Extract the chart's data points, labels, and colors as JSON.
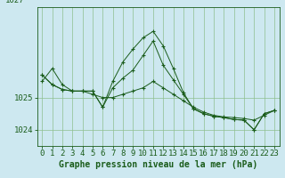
{
  "title": "Graphe pression niveau de la mer (hPa)",
  "background_color": "#cde8f0",
  "line_color": "#1a5c1a",
  "grid_color": "#8fbf8f",
  "hours": [
    0,
    1,
    2,
    3,
    4,
    5,
    6,
    7,
    8,
    9,
    10,
    11,
    12,
    13,
    14,
    15,
    16,
    17,
    18,
    19,
    20,
    21,
    22,
    23
  ],
  "series": [
    [
      1025.5,
      1025.9,
      1025.4,
      1025.2,
      1025.2,
      1025.1,
      1025.0,
      1025.0,
      1025.1,
      1025.2,
      1025.3,
      1025.5,
      1025.3,
      1025.1,
      1024.9,
      1024.7,
      1024.55,
      1024.45,
      1024.4,
      1024.38,
      1024.35,
      1024.3,
      1024.45,
      1024.6
    ],
    [
      1025.7,
      1025.4,
      1025.25,
      1025.2,
      1025.2,
      1025.2,
      1024.7,
      1025.3,
      1025.6,
      1025.85,
      1026.3,
      1026.75,
      1026.0,
      1025.55,
      1025.1,
      1024.65,
      1024.5,
      1024.42,
      1024.38,
      1024.32,
      1024.3,
      1024.0,
      1024.5,
      1024.6
    ],
    [
      1025.7,
      1025.4,
      1025.25,
      1025.2,
      1025.2,
      1025.2,
      1024.7,
      1025.5,
      1026.1,
      1026.5,
      1026.85,
      1027.05,
      1026.6,
      1025.9,
      1025.15,
      1024.65,
      1024.5,
      1024.42,
      1024.38,
      1024.32,
      1024.3,
      1024.0,
      1024.5,
      1024.6
    ]
  ],
  "yticks": [
    1024,
    1025
  ],
  "ylim": [
    1023.5,
    1027.8
  ],
  "xlim": [
    -0.5,
    23.5
  ],
  "title_fontsize": 7.0,
  "tick_fontsize": 6.5
}
